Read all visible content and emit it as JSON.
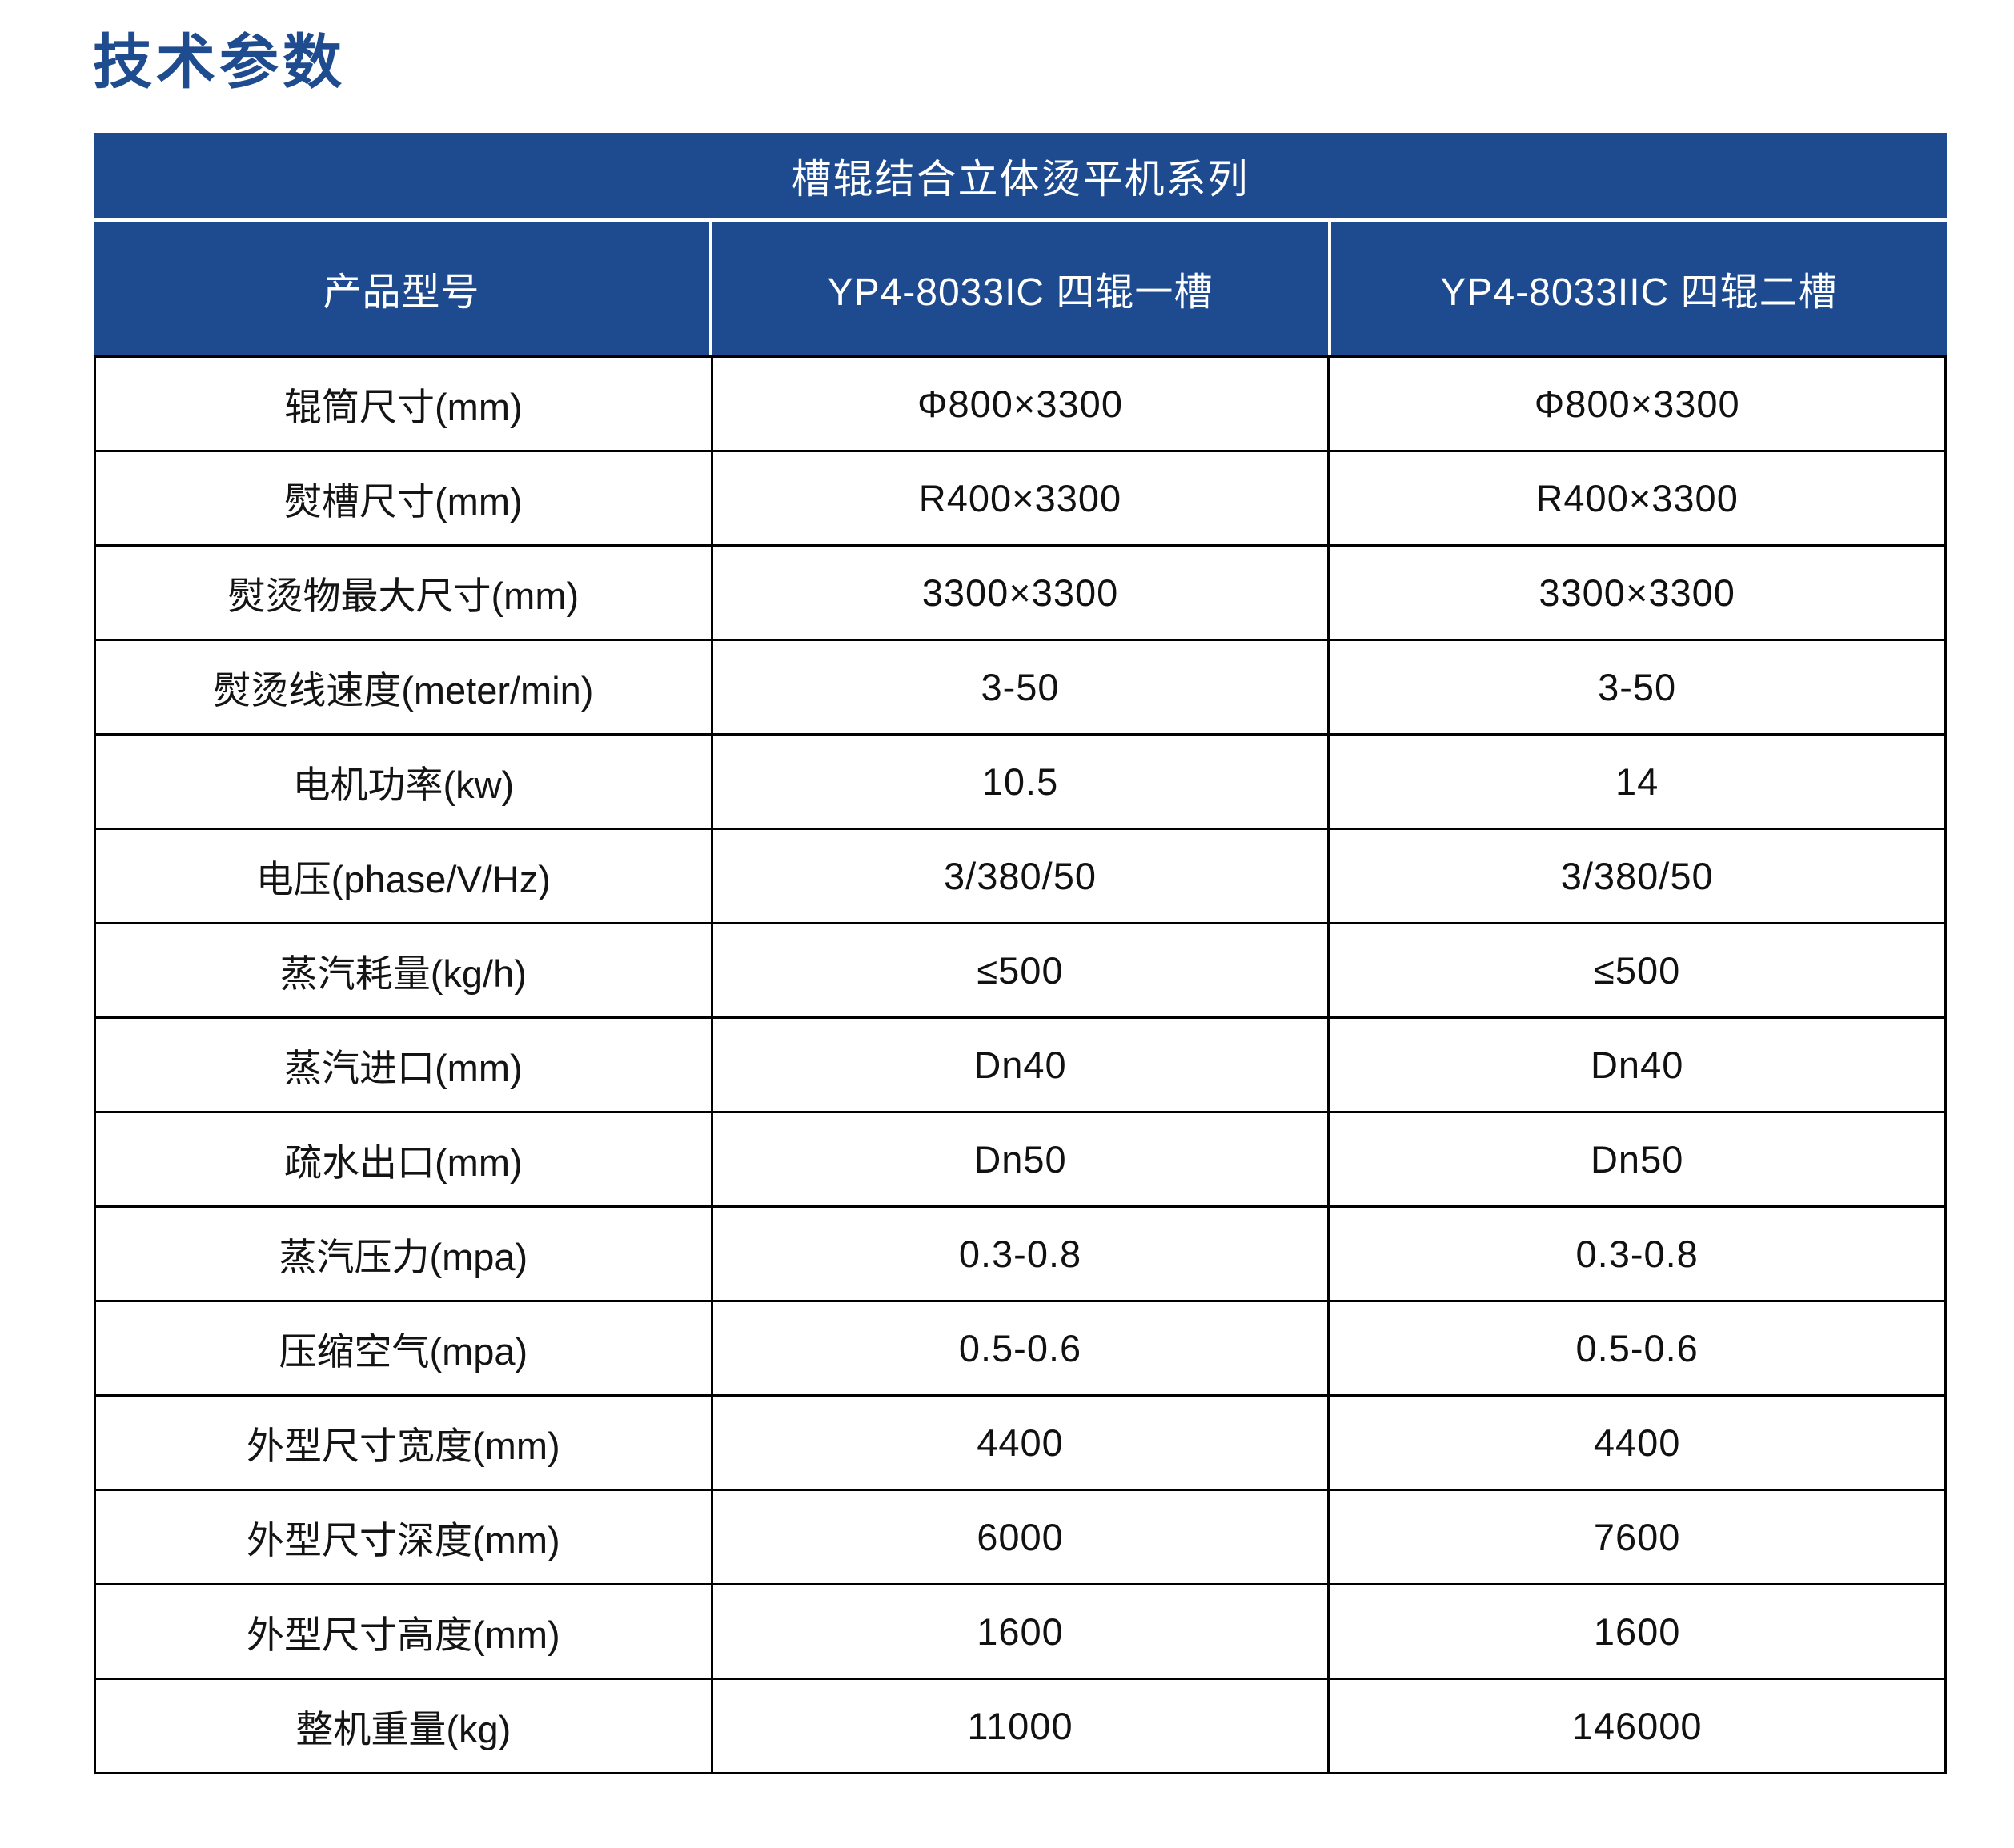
{
  "page": {
    "title": "技术参数"
  },
  "colors": {
    "header_bg": "#1e4b8f",
    "header_text": "#ffffff",
    "title_text": "#1f4b8f",
    "border": "#000000",
    "body_bg": "#ffffff",
    "body_text": "#111111"
  },
  "table": {
    "series_header": "槽辊结合立体烫平机系列",
    "columns": [
      "产品型号",
      "YP4-8033IC 四辊一槽",
      "YP4-8033IIC 四辊二槽"
    ],
    "rows": [
      {
        "label": "辊筒尺寸(mm)",
        "v1": "Φ800×3300",
        "v2": "Φ800×3300"
      },
      {
        "label": "熨槽尺寸(mm)",
        "v1": "R400×3300",
        "v2": "R400×3300"
      },
      {
        "label": "熨烫物最大尺寸(mm)",
        "v1": "3300×3300",
        "v2": "3300×3300"
      },
      {
        "label": "熨烫线速度(meter/min)",
        "v1": "3-50",
        "v2": "3-50"
      },
      {
        "label": "电机功率(kw)",
        "v1": "10.5",
        "v2": "14"
      },
      {
        "label": "电压(phase/V/Hz)",
        "v1": "3/380/50",
        "v2": "3/380/50"
      },
      {
        "label": "蒸汽耗量(kg/h)",
        "v1": "≤500",
        "v2": "≤500"
      },
      {
        "label": "蒸汽进口(mm)",
        "v1": "Dn40",
        "v2": "Dn40"
      },
      {
        "label": "疏水出口(mm)",
        "v1": "Dn50",
        "v2": "Dn50"
      },
      {
        "label": "蒸汽压力(mpa)",
        "v1": "0.3-0.8",
        "v2": "0.3-0.8"
      },
      {
        "label": "压缩空气(mpa)",
        "v1": "0.5-0.6",
        "v2": "0.5-0.6"
      },
      {
        "label": "外型尺寸宽度(mm)",
        "v1": "4400",
        "v2": "4400"
      },
      {
        "label": "外型尺寸深度(mm)",
        "v1": "6000",
        "v2": "7600"
      },
      {
        "label": "外型尺寸高度(mm)",
        "v1": "1600",
        "v2": "1600"
      },
      {
        "label": "整机重量(kg)",
        "v1": "11000",
        "v2": "146000"
      }
    ]
  }
}
